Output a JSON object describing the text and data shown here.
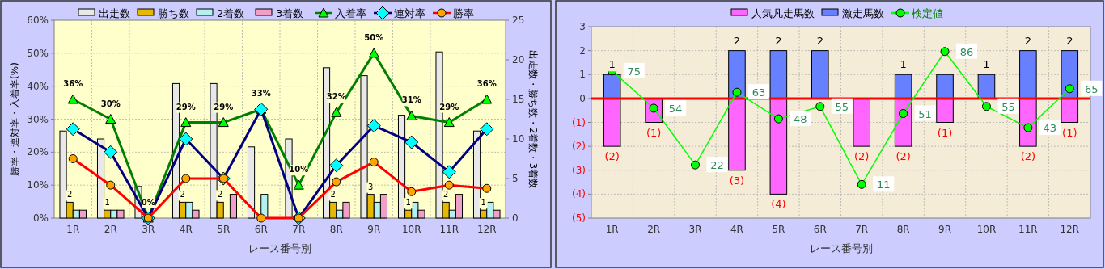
{
  "chart_data": [
    {
      "type": "bar",
      "categories": [
        "1R",
        "2R",
        "3R",
        "4R",
        "5R",
        "6R",
        "7R",
        "8R",
        "9R",
        "10R",
        "11R",
        "12R"
      ],
      "xlabel": "レース番号別",
      "ylabel": "勝率・連対率・入着率(%)",
      "y2label": "出走数・勝ち数・2着数・3着数",
      "ylim": [
        0,
        60
      ],
      "yticks": [
        {
          "value": 0,
          "label": "0%"
        },
        {
          "value": 10,
          "label": "10%"
        },
        {
          "value": 20,
          "label": "20%"
        },
        {
          "value": 30,
          "label": "30%"
        },
        {
          "value": 40,
          "label": "40%"
        },
        {
          "value": 50,
          "label": "50%"
        },
        {
          "value": 60,
          "label": "60%"
        }
      ],
      "y2lim": [
        0,
        25
      ],
      "y2ticks": [
        0,
        5,
        10,
        15,
        20,
        25
      ],
      "grid": true,
      "legend": "top",
      "series": [
        {
          "name": "出走数",
          "axis": "y2",
          "color": "#e8e8e8",
          "values": [
            11,
            10,
            4,
            17,
            17,
            9,
            10,
            19,
            18,
            13,
            21,
            11
          ]
        },
        {
          "name": "勝ち数",
          "axis": "y2",
          "color": "#e6b800",
          "values": [
            2,
            1,
            0,
            2,
            2,
            0,
            0,
            2,
            3,
            1,
            2,
            1
          ],
          "value_labels": [
            "2",
            "1",
            null,
            "2",
            "2",
            null,
            null,
            "2",
            "3",
            "1",
            "2",
            "1"
          ]
        },
        {
          "name": "2着数",
          "axis": "y2",
          "color": "#b3f0f0",
          "values": [
            1,
            1,
            0,
            2,
            0,
            3,
            0,
            1,
            2,
            2,
            1,
            2
          ]
        },
        {
          "name": "3着数",
          "axis": "y2",
          "color": "#f0a0c8",
          "values": [
            1,
            1,
            0,
            1,
            3,
            0,
            0,
            2,
            3,
            1,
            3,
            1
          ]
        },
        {
          "name": "入着率",
          "type": "line",
          "color": "#008000",
          "marker": "triangle",
          "values": [
            36,
            30,
            0,
            29,
            29,
            33,
            10,
            32,
            50,
            31,
            29,
            36
          ],
          "value_labels": [
            "36%",
            "30%",
            "0%",
            "29%",
            "29%",
            "33%",
            "10%",
            "32%",
            "50%",
            "31%",
            "29%",
            "36%"
          ]
        },
        {
          "name": "連対率",
          "type": "line",
          "color": "#000080",
          "marker": "diamond",
          "values": [
            27,
            20,
            0,
            24,
            12,
            33,
            0,
            16,
            28,
            23,
            14,
            27
          ]
        },
        {
          "name": "勝率",
          "type": "line",
          "color": "#ff0000",
          "marker": "circle",
          "values": [
            18,
            10,
            0,
            12,
            12,
            0,
            0,
            11,
            17,
            8,
            10,
            9
          ]
        }
      ]
    },
    {
      "type": "bar",
      "stacked": true,
      "categories": [
        "1R",
        "2R",
        "3R",
        "4R",
        "5R",
        "6R",
        "7R",
        "8R",
        "9R",
        "10R",
        "11R",
        "12R"
      ],
      "xlabel": "レース番号別",
      "ylim": [
        -5,
        3
      ],
      "yticks": [
        {
          "value": 3,
          "label": "3"
        },
        {
          "value": 2,
          "label": "2"
        },
        {
          "value": 1,
          "label": "1"
        },
        {
          "value": 0,
          "label": "0"
        },
        {
          "value": -1,
          "label": "(1)"
        },
        {
          "value": -2,
          "label": "(2)"
        },
        {
          "value": -3,
          "label": "(3)"
        },
        {
          "value": -4,
          "label": "(4)"
        },
        {
          "value": -5,
          "label": "(5)"
        }
      ],
      "y2lim": [
        -8,
        100
      ],
      "tick_labels": "xy",
      "grid": true,
      "legend": "top",
      "ref_lines": [
        {
          "axis": "y",
          "value": 0,
          "color": "#ff0000"
        }
      ],
      "series": [
        {
          "name": "人気凡走馬数",
          "color": "#ff66ff",
          "values": [
            -2,
            -1,
            0,
            -3,
            -4,
            0,
            -2,
            -2,
            -1,
            0,
            -2,
            -1
          ],
          "value_labels": [
            "(2)",
            "(1)",
            null,
            "(3)",
            "(4)",
            null,
            "(2)",
            "(2)",
            "(1)",
            null,
            "(2)",
            "(1)"
          ]
        },
        {
          "name": "激走馬数",
          "color": "#6680ff",
          "values": [
            1,
            0,
            0,
            2,
            2,
            2,
            0,
            1,
            1,
            1,
            2,
            2
          ],
          "value_labels": [
            "1",
            null,
            null,
            "2",
            "2",
            "2",
            null,
            "1",
            null,
            "1",
            "2",
            "2"
          ]
        },
        {
          "name": "検定値",
          "type": "line",
          "axis": "y2",
          "color": "#00ff00",
          "marker": "circle",
          "values": [
            75,
            54,
            22,
            63,
            48,
            55,
            11,
            51,
            86,
            55,
            43,
            65
          ],
          "value_labels": [
            "75",
            "54",
            "22",
            "63",
            "48",
            "55",
            "11",
            "51",
            "86",
            "55",
            "43",
            "65"
          ]
        }
      ]
    }
  ]
}
